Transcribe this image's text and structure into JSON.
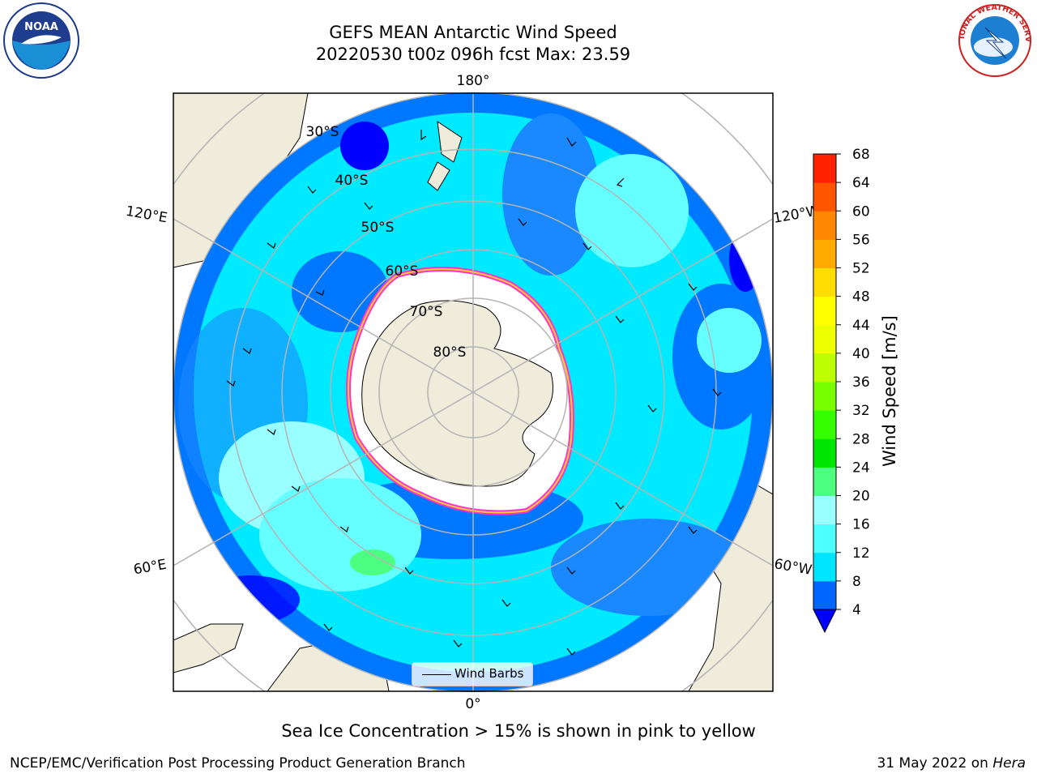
{
  "title": {
    "line1": "GEFS MEAN Antarctic Wind Speed",
    "line2": "20220530 t00z 096h fcst   Max: 23.59"
  },
  "logos": {
    "left": "noaa-logo",
    "right": "nws-logo",
    "noaa_text": "NOAA",
    "nws_text": "NATIONAL WEATHER SERVICE"
  },
  "map": {
    "projection": "south-polar-stereographic",
    "lon_labels": {
      "top": "180°",
      "bottom": "0°",
      "upper_left": "120°E",
      "upper_right": "120°W",
      "lower_left": "60°E",
      "lower_right": "60°W"
    },
    "lat_labels": [
      "30°S",
      "40°S",
      "50°S",
      "60°S",
      "70°S",
      "80°S"
    ],
    "legend_label": "Wind Barbs",
    "colors": {
      "land": "#efecdc",
      "ice_edge": "#ff33cc",
      "ice_edge_inner": "#ffcc33",
      "grid": "#b4b4b4"
    }
  },
  "colorbar": {
    "label": "Wind Speed [m/s]",
    "ticks": [
      "4",
      "8",
      "12",
      "16",
      "20",
      "24",
      "28",
      "32",
      "36",
      "40",
      "44",
      "48",
      "52",
      "56",
      "60",
      "64",
      "68"
    ],
    "colors": [
      "#0066ff",
      "#00e5ff",
      "#4dffff",
      "#99ffff",
      "#4dff80",
      "#00e600",
      "#33ff00",
      "#77ff00",
      "#bbff00",
      "#eeff00",
      "#ffff00",
      "#ffdd00",
      "#ffaa00",
      "#ff8800",
      "#ff5500",
      "#ff2200",
      "#ff0000"
    ],
    "under_color": "#0000ff"
  },
  "caption": "Sea Ice Concentration > 15% is shown in pink to yellow",
  "footer": {
    "left": "NCEP/EMC/Verification Post Processing Product Generation Branch",
    "right_date": "31 May 2022 on ",
    "right_host": "Hera"
  }
}
